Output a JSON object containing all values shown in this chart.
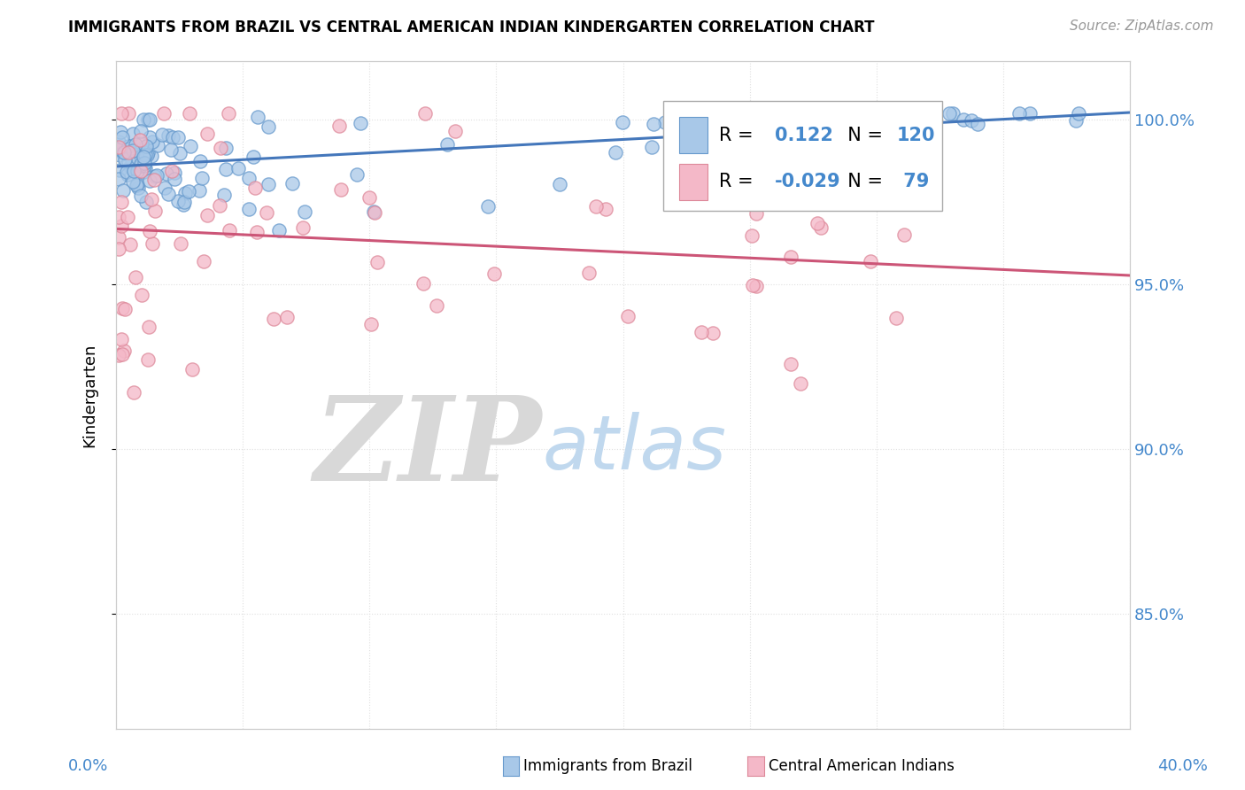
{
  "title": "IMMIGRANTS FROM BRAZIL VS CENTRAL AMERICAN INDIAN KINDERGARTEN CORRELATION CHART",
  "source": "Source: ZipAtlas.com",
  "ylabel": "Kindergarten",
  "ytick_values": [
    1.0,
    0.95,
    0.9,
    0.85
  ],
  "xlim": [
    0.0,
    0.4
  ],
  "ylim": [
    0.815,
    1.018
  ],
  "R_brazil": 0.122,
  "N_brazil": 120,
  "R_indian": -0.029,
  "N_indian": 79,
  "legend_brazil": "Immigrants from Brazil",
  "legend_indian": "Central American Indians",
  "blue_color": "#a8c8e8",
  "blue_edge_color": "#6699cc",
  "blue_line_color": "#4477bb",
  "pink_color": "#f4b8c8",
  "pink_edge_color": "#dd8899",
  "pink_line_color": "#cc5577",
  "watermark_ZIP_color": "#d8d8d8",
  "watermark_atlas_color": "#c0d8ee",
  "grid_color": "#e0e0e0",
  "spine_color": "#cccccc",
  "right_axis_color": "#4488cc"
}
